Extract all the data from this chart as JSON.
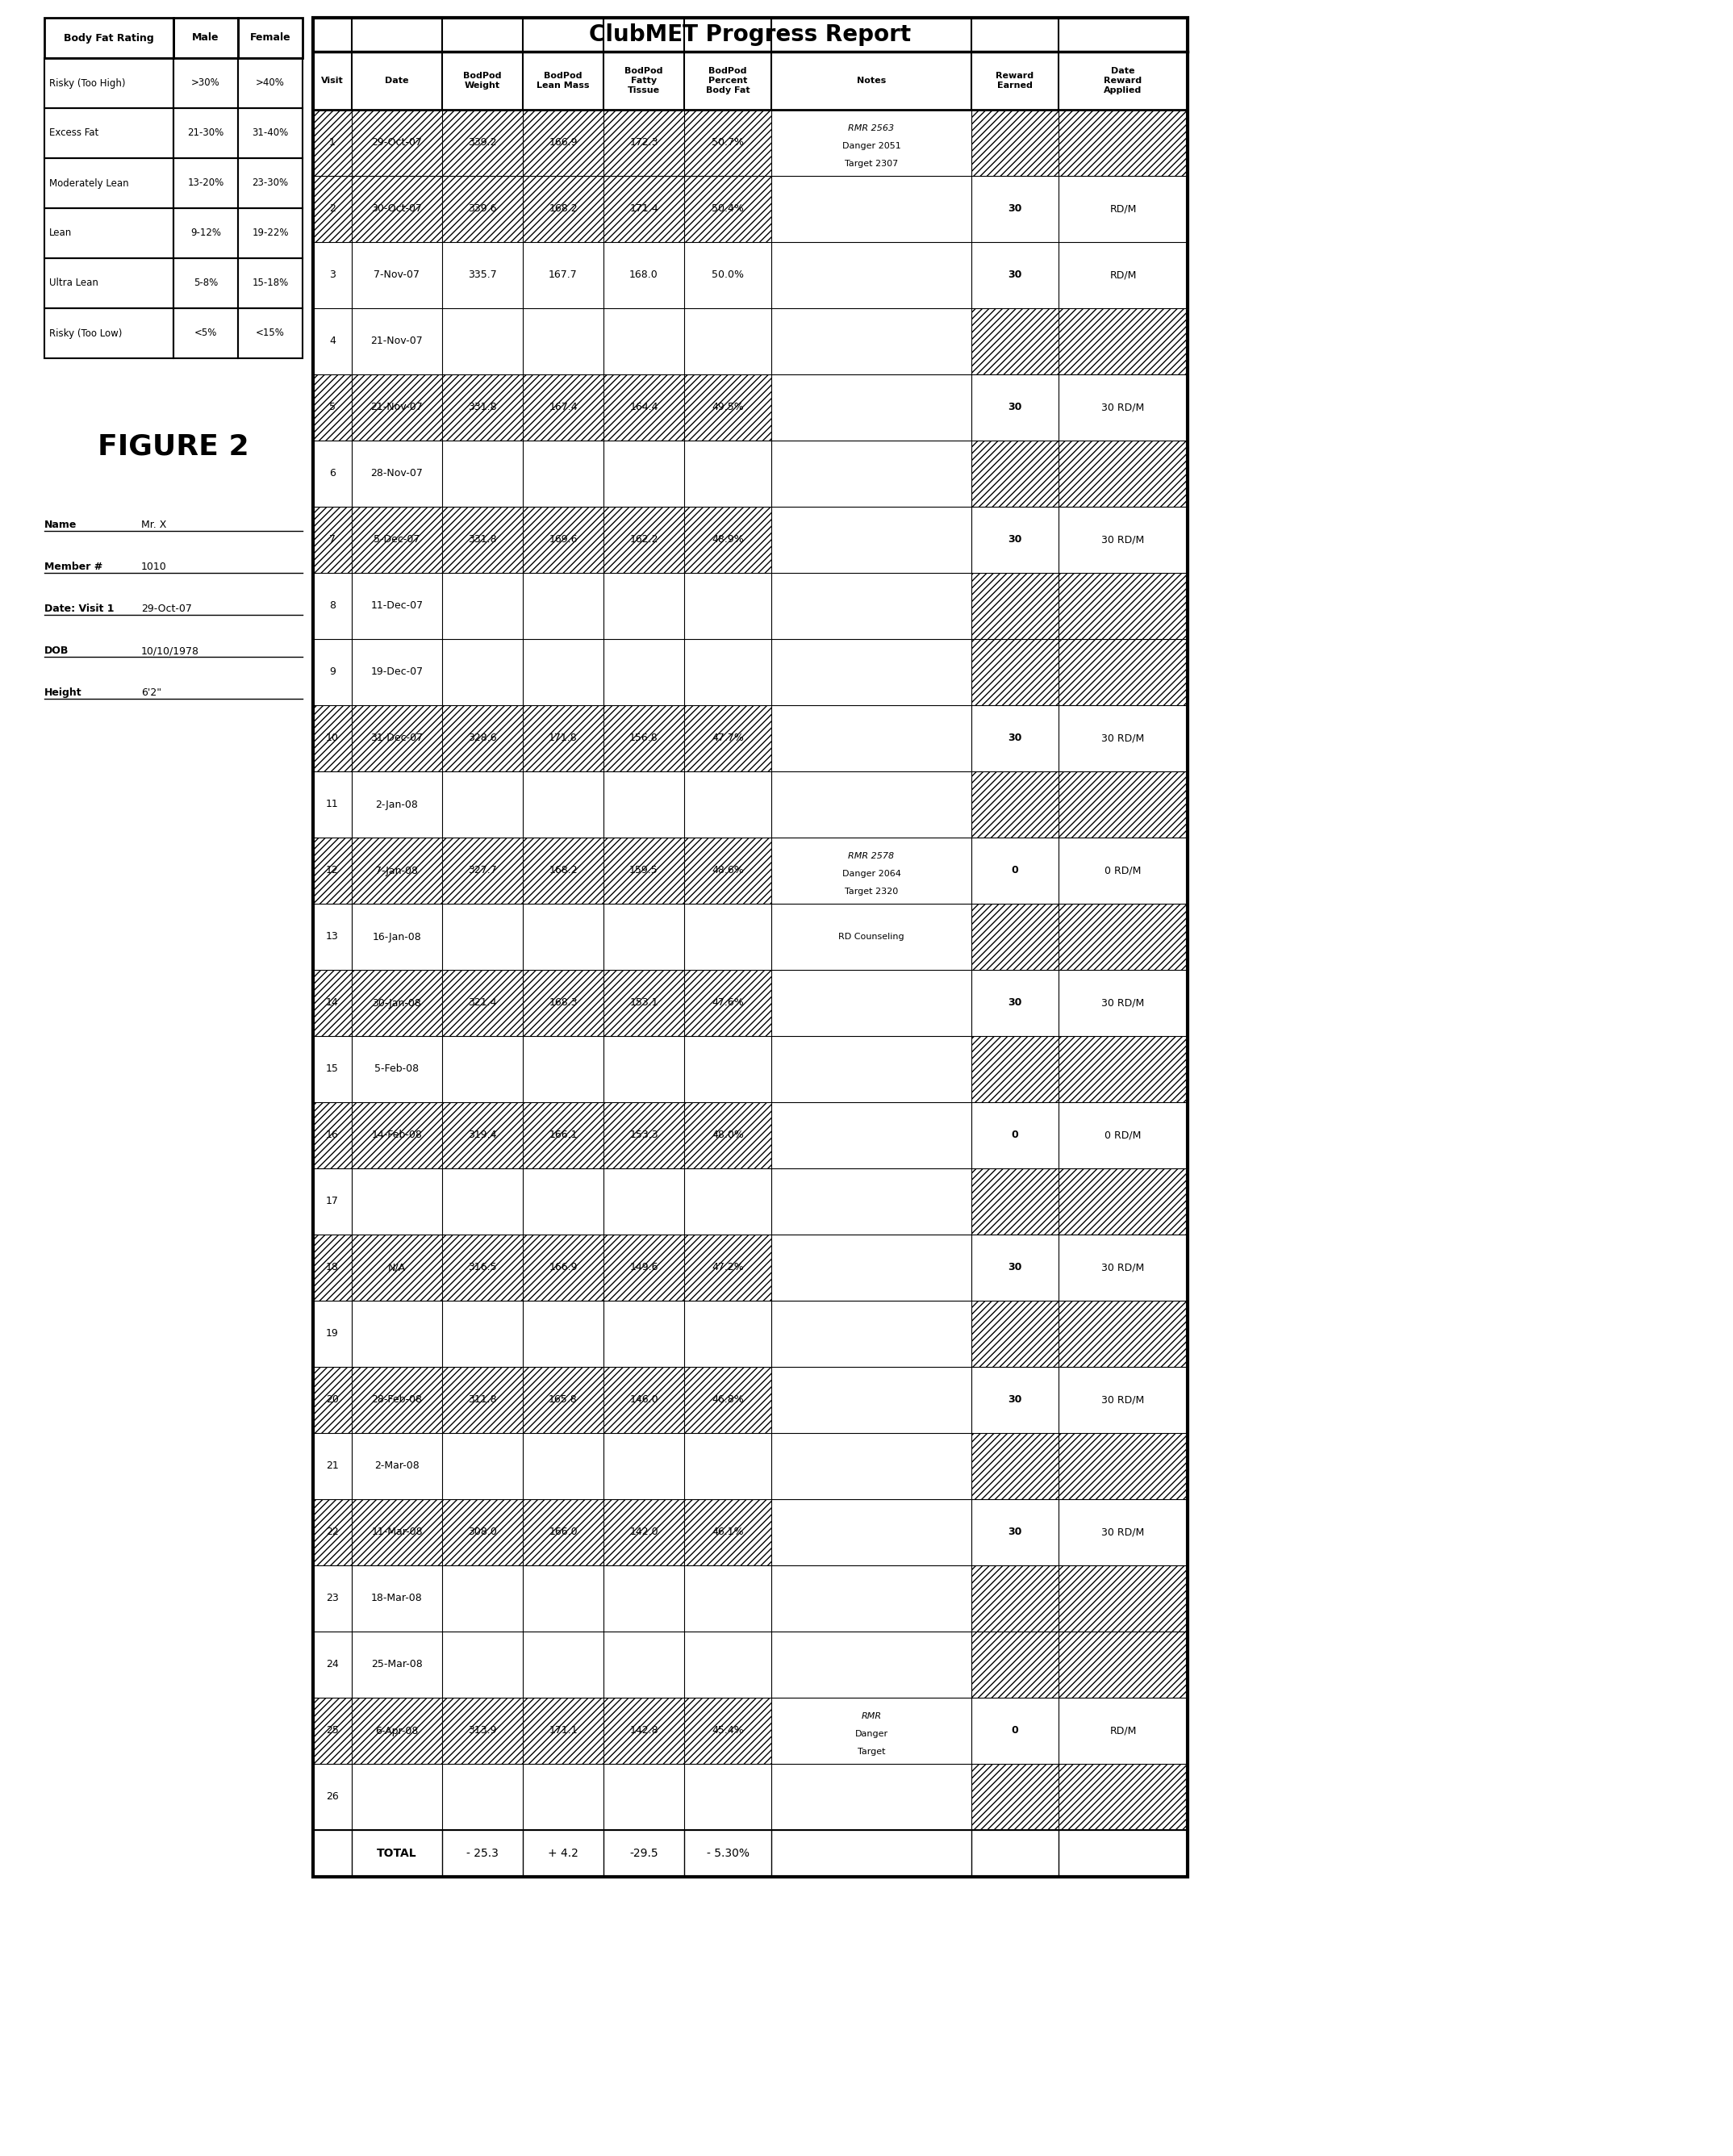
{
  "figure_label": "FIGURE 2",
  "patient_info": [
    [
      "Name",
      "Mr. X"
    ],
    [
      "Member #",
      "1010"
    ],
    [
      "Date: Visit 1",
      "29-Oct-07"
    ],
    [
      "DOB",
      "10/10/1978"
    ],
    [
      "Height",
      "6'2\""
    ]
  ],
  "bfr_table": {
    "col1_header": "Body Fat Rating",
    "col2_header": "Male",
    "col3_header": "Female",
    "rows": [
      [
        "Risky (Too High)",
        ">30%",
        ">40%"
      ],
      [
        "Excess Fat",
        "21-30%",
        "31-40%"
      ],
      [
        "Moderately Lean",
        "13-20%",
        "23-30%"
      ],
      [
        "Lean",
        "9-12%",
        "19-22%"
      ],
      [
        "Ultra Lean",
        "5-8%",
        "15-18%"
      ],
      [
        "Risky (Too Low)",
        "<5%",
        "<15%"
      ]
    ]
  },
  "main_title": "ClubMET Progress Report",
  "col_headers": [
    "Visit",
    "Date",
    "BodPod\nWeight",
    "BodPod\nLean Mass",
    "BodPod\nFatty\nTissue",
    "BodPod\nPercent\nBody Fat",
    "Notes",
    "Reward\nEarned",
    "Date\nReward\nApplied"
  ],
  "rows": [
    {
      "visit": "1",
      "date": "29-Oct-07",
      "weight": "339.2",
      "lean": "166.9",
      "fatty": "172.3",
      "pct": "50.7%",
      "notes_lines": [
        "RMR 2563",
        "Danger 2051",
        "Target 2307"
      ],
      "reward": "",
      "rdapp": "",
      "hatch_data": true,
      "hatch_reward": true,
      "hatch_rdapp": true
    },
    {
      "visit": "2",
      "date": "30-Oct-07",
      "weight": "339.6",
      "lean": "168.2",
      "fatty": "171.4",
      "pct": "50.4%",
      "notes_lines": [],
      "reward": "30",
      "rdapp": "RD/M",
      "hatch_data": true,
      "hatch_reward": false,
      "hatch_rdapp": false
    },
    {
      "visit": "3",
      "date": "7-Nov-07",
      "weight": "335.7",
      "lean": "167.7",
      "fatty": "168.0",
      "pct": "50.0%",
      "notes_lines": [],
      "reward": "30",
      "rdapp": "RD/M",
      "hatch_data": false,
      "hatch_reward": false,
      "hatch_rdapp": false
    },
    {
      "visit": "4",
      "date": "21-Nov-07",
      "weight": "",
      "lean": "",
      "fatty": "",
      "pct": "",
      "notes_lines": [],
      "reward": "",
      "rdapp": "",
      "hatch_data": false,
      "hatch_reward": true,
      "hatch_rdapp": true
    },
    {
      "visit": "5",
      "date": "21-Nov-07",
      "weight": "331.8",
      "lean": "167.4",
      "fatty": "164.4",
      "pct": "49.5%",
      "notes_lines": [],
      "reward": "30",
      "rdapp": "30 RD/M",
      "hatch_data": true,
      "hatch_reward": false,
      "hatch_rdapp": false
    },
    {
      "visit": "6",
      "date": "28-Nov-07",
      "weight": "",
      "lean": "",
      "fatty": "",
      "pct": "",
      "notes_lines": [],
      "reward": "",
      "rdapp": "",
      "hatch_data": false,
      "hatch_reward": true,
      "hatch_rdapp": true
    },
    {
      "visit": "7",
      "date": "5-Dec-07",
      "weight": "331.8",
      "lean": "169.6",
      "fatty": "162.2",
      "pct": "48.9%",
      "notes_lines": [],
      "reward": "30",
      "rdapp": "30 RD/M",
      "hatch_data": true,
      "hatch_reward": false,
      "hatch_rdapp": false
    },
    {
      "visit": "8",
      "date": "11-Dec-07",
      "weight": "",
      "lean": "",
      "fatty": "",
      "pct": "",
      "notes_lines": [],
      "reward": "",
      "rdapp": "",
      "hatch_data": false,
      "hatch_reward": true,
      "hatch_rdapp": true
    },
    {
      "visit": "9",
      "date": "19-Dec-07",
      "weight": "",
      "lean": "",
      "fatty": "",
      "pct": "",
      "notes_lines": [],
      "reward": "",
      "rdapp": "",
      "hatch_data": false,
      "hatch_reward": true,
      "hatch_rdapp": true
    },
    {
      "visit": "10",
      "date": "31-Dec-07",
      "weight": "328.6",
      "lean": "171.8",
      "fatty": "156.8",
      "pct": "47.7%",
      "notes_lines": [],
      "reward": "30",
      "rdapp": "30 RD/M",
      "hatch_data": true,
      "hatch_reward": false,
      "hatch_rdapp": false
    },
    {
      "visit": "11",
      "date": "2-Jan-08",
      "weight": "",
      "lean": "",
      "fatty": "",
      "pct": "",
      "notes_lines": [],
      "reward": "",
      "rdapp": "",
      "hatch_data": false,
      "hatch_reward": true,
      "hatch_rdapp": true
    },
    {
      "visit": "12",
      "date": "7-Jan-08",
      "weight": "327.7",
      "lean": "168.2",
      "fatty": "159.5",
      "pct": "48.6%",
      "notes_lines": [
        "RMR 2578",
        "Danger 2064",
        "Target 2320"
      ],
      "reward": "0",
      "rdapp": "0 RD/M",
      "hatch_data": true,
      "hatch_reward": false,
      "hatch_rdapp": false
    },
    {
      "visit": "13",
      "date": "16-Jan-08",
      "weight": "",
      "lean": "",
      "fatty": "",
      "pct": "",
      "notes_lines": [
        "RD Counseling"
      ],
      "reward": "",
      "rdapp": "",
      "hatch_data": false,
      "hatch_reward": true,
      "hatch_rdapp": true
    },
    {
      "visit": "14",
      "date": "30-Jan-08",
      "weight": "321.4",
      "lean": "168.3",
      "fatty": "153.1",
      "pct": "47.6%",
      "notes_lines": [],
      "reward": "30",
      "rdapp": "30 RD/M",
      "hatch_data": true,
      "hatch_reward": false,
      "hatch_rdapp": false
    },
    {
      "visit": "15",
      "date": "5-Feb-08",
      "weight": "",
      "lean": "",
      "fatty": "",
      "pct": "",
      "notes_lines": [],
      "reward": "",
      "rdapp": "",
      "hatch_data": false,
      "hatch_reward": true,
      "hatch_rdapp": true
    },
    {
      "visit": "16",
      "date": "14-Feb-08",
      "weight": "319.4",
      "lean": "166.1",
      "fatty": "153.3",
      "pct": "48.0%",
      "notes_lines": [],
      "reward": "0",
      "rdapp": "0 RD/M",
      "hatch_data": true,
      "hatch_reward": false,
      "hatch_rdapp": false
    },
    {
      "visit": "17",
      "date": "",
      "weight": "",
      "lean": "",
      "fatty": "",
      "pct": "",
      "notes_lines": [],
      "reward": "",
      "rdapp": "",
      "hatch_data": false,
      "hatch_reward": true,
      "hatch_rdapp": true
    },
    {
      "visit": "18",
      "date": "N/A",
      "weight": "316.5",
      "lean": "166.9",
      "fatty": "149.6",
      "pct": "47.2%",
      "notes_lines": [],
      "reward": "30",
      "rdapp": "30 RD/M",
      "hatch_data": true,
      "hatch_reward": false,
      "hatch_rdapp": false
    },
    {
      "visit": "19",
      "date": "",
      "weight": "",
      "lean": "",
      "fatty": "",
      "pct": "",
      "notes_lines": [],
      "reward": "",
      "rdapp": "",
      "hatch_data": false,
      "hatch_reward": true,
      "hatch_rdapp": true
    },
    {
      "visit": "20",
      "date": "28-Feb-08",
      "weight": "311.8",
      "lean": "165.8",
      "fatty": "146.0",
      "pct": "46.8%",
      "notes_lines": [],
      "reward": "30",
      "rdapp": "30 RD/M",
      "hatch_data": true,
      "hatch_reward": false,
      "hatch_rdapp": false
    },
    {
      "visit": "21",
      "date": "2-Mar-08",
      "weight": "",
      "lean": "",
      "fatty": "",
      "pct": "",
      "notes_lines": [],
      "reward": "",
      "rdapp": "",
      "hatch_data": false,
      "hatch_reward": true,
      "hatch_rdapp": true
    },
    {
      "visit": "22",
      "date": "11-Mar-08",
      "weight": "308.0",
      "lean": "166.0",
      "fatty": "142.0",
      "pct": "46.1%",
      "notes_lines": [],
      "reward": "30",
      "rdapp": "30 RD/M",
      "hatch_data": true,
      "hatch_reward": false,
      "hatch_rdapp": false
    },
    {
      "visit": "23",
      "date": "18-Mar-08",
      "weight": "",
      "lean": "",
      "fatty": "",
      "pct": "",
      "notes_lines": [],
      "reward": "",
      "rdapp": "",
      "hatch_data": false,
      "hatch_reward": true,
      "hatch_rdapp": true
    },
    {
      "visit": "24",
      "date": "25-Mar-08",
      "weight": "",
      "lean": "",
      "fatty": "",
      "pct": "",
      "notes_lines": [],
      "reward": "",
      "rdapp": "",
      "hatch_data": false,
      "hatch_reward": true,
      "hatch_rdapp": true
    },
    {
      "visit": "25",
      "date": "6-Apr-08",
      "weight": "313.9",
      "lean": "171.1",
      "fatty": "142.8",
      "pct": "45.4%",
      "notes_lines": [
        "RMR",
        "Danger",
        "Target"
      ],
      "reward": "0",
      "rdapp": "RD/M",
      "hatch_data": true,
      "hatch_reward": false,
      "hatch_rdapp": false
    },
    {
      "visit": "26",
      "date": "",
      "weight": "",
      "lean": "",
      "fatty": "",
      "pct": "",
      "notes_lines": [],
      "reward": "",
      "rdapp": "",
      "hatch_data": false,
      "hatch_reward": true,
      "hatch_rdapp": true
    }
  ],
  "totals": {
    "weight": "- 25.3",
    "lean": "+ 4.2",
    "fatty": "-29.5",
    "pct": "- 5.30%"
  }
}
